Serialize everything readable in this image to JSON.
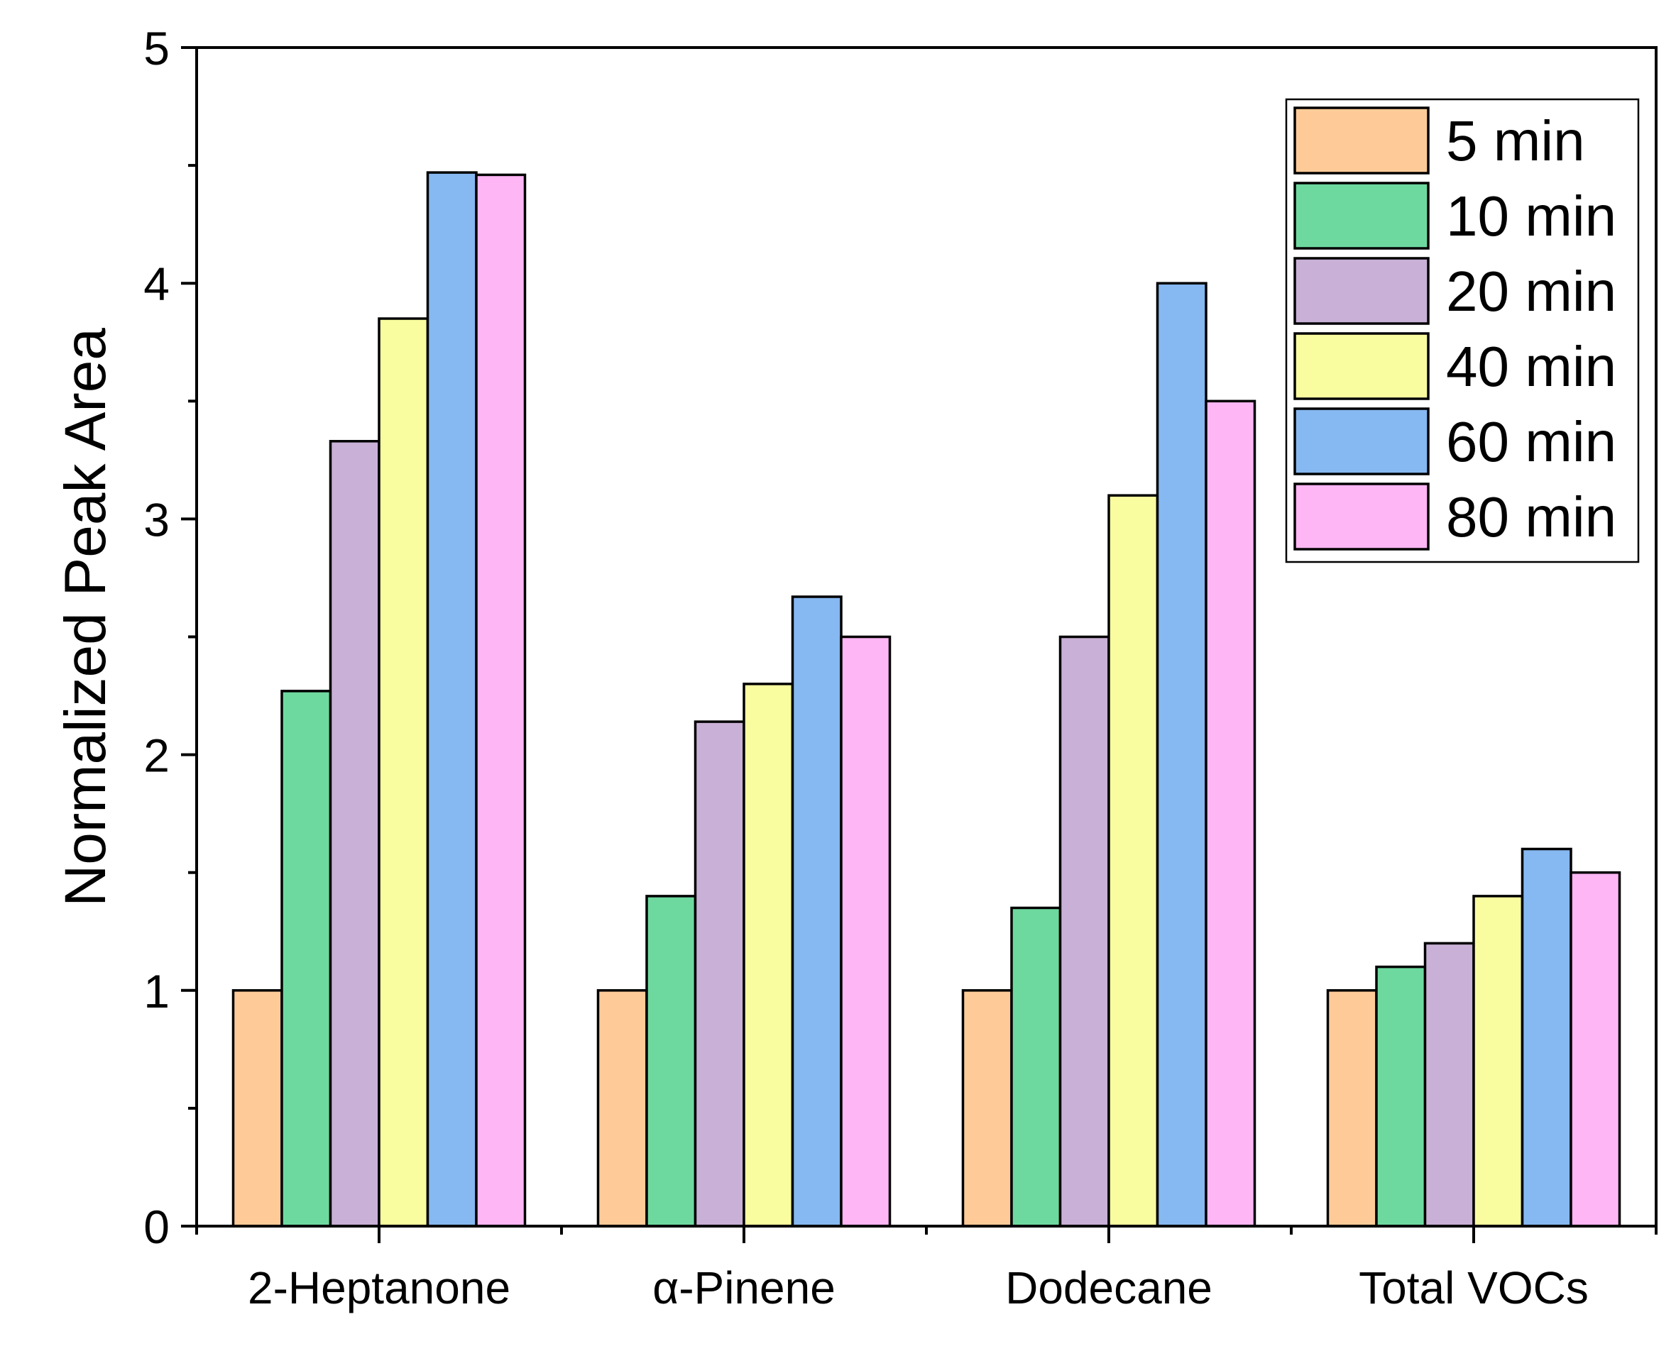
{
  "chart_data": {
    "type": "bar",
    "title": "",
    "xlabel": "",
    "ylabel": "Normalized Peak Area",
    "categories": [
      "2-Heptanone",
      "α-Pinene",
      "Dodecane",
      "Total VOCs"
    ],
    "ylim": [
      0,
      5
    ],
    "yticks": [
      "0",
      "1",
      "2",
      "3",
      "4",
      "5"
    ],
    "grid": false,
    "legend_position": "top-right",
    "series": [
      {
        "name": "5 min",
        "color": "#FECB98",
        "values": [
          1.0,
          1.0,
          1.0,
          1.0
        ]
      },
      {
        "name": "10 min",
        "color": "#6ED99F",
        "values": [
          2.27,
          1.4,
          1.35,
          1.1
        ]
      },
      {
        "name": "20 min",
        "color": "#C9B0D6",
        "values": [
          3.33,
          2.14,
          2.5,
          1.2
        ]
      },
      {
        "name": "40 min",
        "color": "#FAFCA0",
        "values": [
          3.85,
          2.3,
          3.1,
          1.4
        ]
      },
      {
        "name": "60 min",
        "color": "#86B8F1",
        "values": [
          4.47,
          2.67,
          4.0,
          1.6
        ]
      },
      {
        "name": "80 min",
        "color": "#FEB6F4",
        "values": [
          4.46,
          2.5,
          3.5,
          1.5
        ]
      }
    ]
  }
}
